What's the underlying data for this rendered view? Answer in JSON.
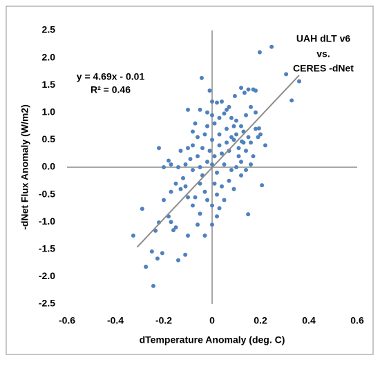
{
  "chart_data": {
    "type": "scatter",
    "x_label": "dTemperature Anomaly (deg. C)",
    "y_label": "-dNet Flux Anomaly (W/m2)",
    "annotations": [
      "y = 4.69x - 0.01",
      "R² = 0.46",
      "UAH dLT v6",
      "vs.",
      "CERES -dNet"
    ],
    "xlim": [
      -0.6,
      0.6
    ],
    "xticks": [
      -0.6,
      -0.4,
      -0.2,
      0,
      0.2,
      0.4,
      0.6
    ],
    "ylim": [
      -2.5,
      2.5
    ],
    "yticks": [
      {
        "value": 2.5,
        "label": "2.5"
      },
      {
        "value": 2,
        "label": "2.0"
      },
      {
        "value": 1.5,
        "label": "1.5"
      },
      {
        "value": 1,
        "label": "1.0"
      },
      {
        "value": 0.5,
        "label": "0.5"
      },
      {
        "value": 0,
        "label": "0.0"
      },
      {
        "value": -0.5,
        "label": "-0.5"
      },
      {
        "value": -1,
        "label": "-1.0"
      },
      {
        "value": -1.5,
        "label": "-1.5"
      },
      {
        "value": -2,
        "label": "-2.0"
      },
      {
        "value": -2.5,
        "label": "-2.5"
      }
    ],
    "color": "#4f81bd",
    "trendline": {
      "color": "#8c8c8c",
      "x": [
        -0.31,
        0.36
      ],
      "y": [
        -1.46,
        1.68
      ]
    },
    "x": [
      0.246,
      0.197,
      0.306,
      0.329,
      0.36,
      -0.043,
      -0.326,
      -0.289,
      -0.274,
      -0.243,
      -0.249,
      -0.226,
      -0.206,
      -0.22,
      -0.234,
      -0.14,
      -0.111,
      0.149,
      0.206,
      0.22,
      0.18,
      0.194,
      0.094,
      0.134,
      0.123,
      0.0,
      0.02,
      0.04,
      0.05,
      0.06,
      -0.05,
      -0.02,
      0.0,
      0.03,
      0.08,
      0.1,
      0.12,
      0.15,
      0.17,
      0.16,
      0.18,
      0.14,
      0.12,
      0.13,
      0.15,
      0.1,
      0.09,
      0.08,
      0.06,
      0.03,
      0.0,
      -0.03,
      -0.06,
      -0.08,
      -0.1,
      -0.07,
      -0.08,
      -0.04,
      -0.01,
      0.01,
      0.04,
      0.07,
      0.11,
      0.14,
      0.17,
      0.2,
      0.19,
      0.16,
      0.12,
      0.1,
      0.08,
      0.05,
      0.02,
      0.0,
      -0.02,
      -0.05,
      -0.08,
      -0.11,
      -0.14,
      -0.17,
      -0.2,
      -0.18,
      -0.22,
      -0.13,
      -0.12,
      -0.15,
      -0.17,
      -0.2,
      -0.13,
      -0.1,
      -0.08,
      -0.05,
      -0.03,
      -0.02,
      0.0,
      0.02,
      0.04,
      0.07,
      0.09,
      0.12,
      0.14,
      0.16,
      0.02,
      0.0,
      -0.03,
      -0.06,
      -0.1,
      -0.15,
      -0.17,
      -0.18,
      -0.16,
      0.03,
      0.05,
      0.01,
      -0.04,
      0.06,
      0.09,
      0.11,
      0.13,
      0.18,
      -0.06,
      -0.09,
      -0.11,
      -0.05,
      -0.07,
      0.03,
      0.01,
      -0.01,
      0.07,
      -0.1,
      -0.02
    ],
    "y": [
      2.2,
      2.1,
      1.7,
      1.22,
      1.57,
      1.63,
      -1.25,
      -0.76,
      -1.82,
      -2.17,
      -1.54,
      -1.67,
      -1.57,
      -1.01,
      -1.16,
      -1.7,
      -1.6,
      -0.86,
      -0.33,
      0.4,
      1.4,
      0.71,
      1.3,
      1.36,
      0.47,
      1.2,
      1.18,
      1.2,
      0.98,
      1.05,
      1.05,
      1.0,
      0.95,
      0.9,
      0.9,
      0.85,
      1.45,
      1.42,
      1.42,
      1.1,
      1.0,
      0.95,
      0.75,
      0.65,
      0.55,
      0.6,
      0.5,
      0.55,
      0.45,
      0.4,
      0.5,
      0.6,
      0.55,
      0.4,
      0.35,
      0.8,
      0.65,
      0.35,
      0.3,
      0.2,
      0.25,
      0.3,
      0.35,
      0.3,
      0.2,
      0.6,
      0.55,
      0.45,
      0.1,
      0.0,
      -0.05,
      0.05,
      -0.1,
      0.05,
      0.1,
      0.0,
      -0.05,
      0.05,
      0.0,
      0.05,
      0.0,
      0.12,
      0.35,
      0.3,
      -0.2,
      -0.3,
      -0.45,
      -0.6,
      -0.4,
      -0.55,
      -0.7,
      -0.3,
      -0.45,
      -0.6,
      -0.7,
      -0.5,
      -0.35,
      -0.25,
      -0.4,
      -0.15,
      -0.05,
      0.05,
      -0.9,
      -1.05,
      -1.25,
      -1.05,
      -1.25,
      -1.1,
      -1.0,
      -0.9,
      -1.15,
      -0.75,
      -0.6,
      -0.3,
      -0.15,
      0.7,
      0.75,
      0.2,
      0.45,
      0.7,
      0.2,
      0.15,
      -0.35,
      -0.85,
      -0.55,
      0.6,
      0.8,
      1.4,
      1.1,
      1.05,
      0.75
    ]
  }
}
